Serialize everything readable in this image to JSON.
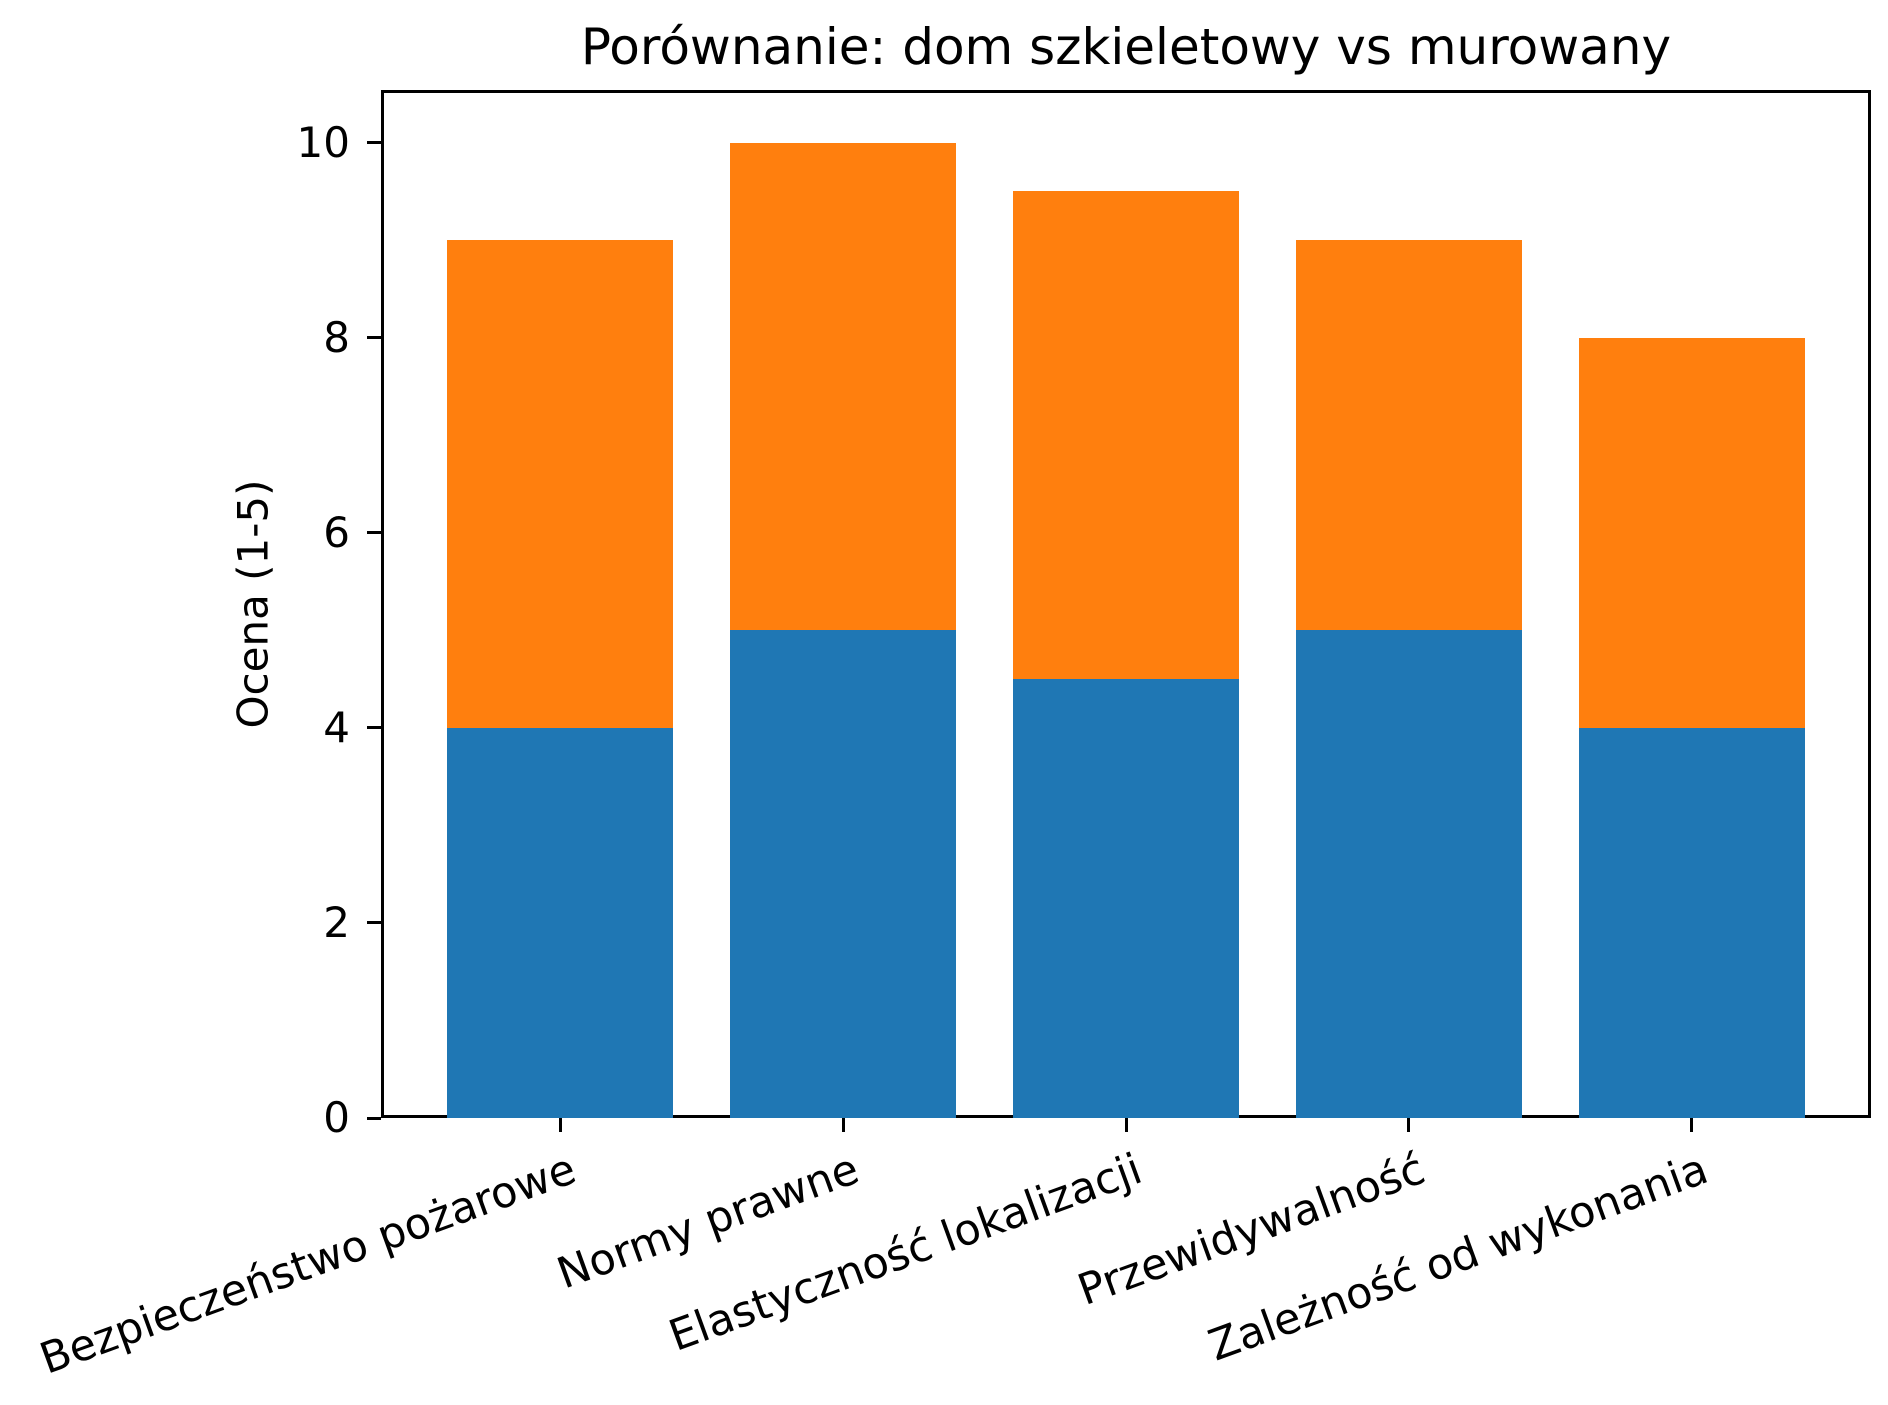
{
  "chart_data": {
    "type": "bar",
    "stacked": true,
    "title": "Porównanie: dom szkieletowy vs murowany",
    "ylabel": "Ocena (1-5)",
    "xlabel": "",
    "categories": [
      "Bezpieczeństwo pożarowe",
      "Normy prawne",
      "Elastyczność lokalizacji",
      "Przewidywalność",
      "Zależność od wykonania"
    ],
    "series": [
      {
        "name": "blue (bottom)",
        "color": "#1f77b4",
        "values": [
          4,
          5,
          4.5,
          5,
          4
        ]
      },
      {
        "name": "orange (top)",
        "color": "#ff7f0e",
        "values": [
          5,
          5,
          5,
          4,
          4
        ]
      }
    ],
    "stacked_totals": [
      9,
      10,
      9.5,
      9,
      8
    ],
    "yticks": [
      0,
      2,
      4,
      6,
      8,
      10
    ],
    "ylim": [
      0,
      10.54
    ],
    "xlim": [
      -0.633,
      4.633
    ],
    "bar_width": 0.8,
    "xtick_rotation_deg": 20,
    "grid": false,
    "legend": false,
    "spine_color": "#000000",
    "background": "#ffffff"
  }
}
